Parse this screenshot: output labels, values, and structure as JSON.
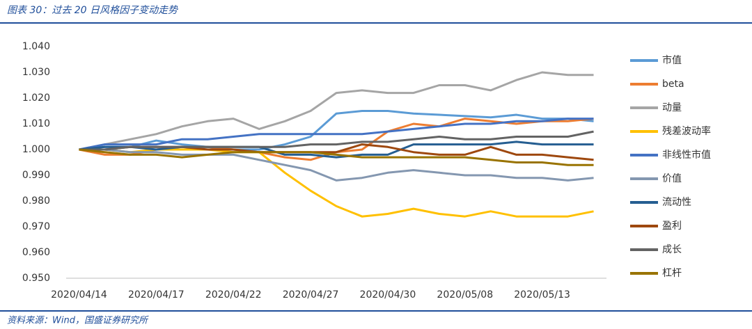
{
  "chart_data": {
    "type": "line",
    "title": "图表 30：过去 20 日风格因子变动走势",
    "source": "资料来源：Wind，国盛证券研究所",
    "categories": [
      "2020/04/14",
      null,
      null,
      "2020/04/17",
      null,
      null,
      "2020/04/22",
      null,
      null,
      "2020/04/27",
      null,
      null,
      "2020/04/30",
      null,
      null,
      "2020/05/08",
      null,
      null,
      "2020/05/13",
      null,
      null
    ],
    "ylim": [
      0.95,
      1.04
    ],
    "yticks": [
      {
        "value": 0.95,
        "label": "0.950"
      },
      {
        "value": 0.96,
        "label": "0.960"
      },
      {
        "value": 0.97,
        "label": "0.970"
      },
      {
        "value": 0.98,
        "label": "0.980"
      },
      {
        "value": 0.99,
        "label": "0.990"
      },
      {
        "value": 1.0,
        "label": "1.000"
      },
      {
        "value": 1.01,
        "label": "1.010"
      },
      {
        "value": 1.02,
        "label": "1.020"
      },
      {
        "value": 1.03,
        "label": "1.030"
      },
      {
        "value": 1.04,
        "label": "1.040"
      }
    ],
    "grid": false,
    "legend": "right",
    "series": [
      {
        "name": "市值",
        "color": "#5b9bd5",
        "values": [
          1.0,
          1.001,
          1.001,
          1.0035,
          1.002,
          1.001,
          1.0,
          1.0,
          1.002,
          1.005,
          1.014,
          1.015,
          1.015,
          1.014,
          1.0135,
          1.013,
          1.0125,
          1.0135,
          1.012,
          1.012,
          1.011
        ]
      },
      {
        "name": "beta",
        "color": "#ed7d31",
        "values": [
          1.0,
          0.998,
          0.998,
          1.0,
          1.001,
          1.001,
          1.0,
          0.999,
          0.997,
          0.996,
          0.999,
          1.0,
          1.007,
          1.01,
          1.009,
          1.012,
          1.011,
          1.01,
          1.011,
          1.011,
          1.012
        ]
      },
      {
        "name": "动量",
        "color": "#a5a5a5",
        "values": [
          1.0,
          1.002,
          1.004,
          1.006,
          1.009,
          1.011,
          1.012,
          1.008,
          1.011,
          1.015,
          1.022,
          1.023,
          1.022,
          1.022,
          1.025,
          1.025,
          1.023,
          1.027,
          1.03,
          1.029,
          1.029
        ]
      },
      {
        "name": "残差波动率",
        "color": "#ffc000",
        "values": [
          1.0,
          1.0,
          0.999,
          1.0,
          1.0,
          1.0,
          0.999,
          0.999,
          0.991,
          0.984,
          0.978,
          0.974,
          0.975,
          0.977,
          0.975,
          0.974,
          0.976,
          0.974,
          0.974,
          0.974,
          0.976
        ]
      },
      {
        "name": "非线性市值",
        "color": "#4472c4",
        "values": [
          1.0,
          1.002,
          1.002,
          1.002,
          1.004,
          1.004,
          1.005,
          1.006,
          1.006,
          1.006,
          1.006,
          1.006,
          1.007,
          1.008,
          1.009,
          1.01,
          1.01,
          1.011,
          1.011,
          1.012,
          1.012
        ]
      },
      {
        "name": "价值",
        "color": "#8497b0",
        "values": [
          1.0,
          1.0,
          0.999,
          0.999,
          0.998,
          0.998,
          0.998,
          0.996,
          0.994,
          0.992,
          0.988,
          0.989,
          0.991,
          0.992,
          0.991,
          0.99,
          0.99,
          0.989,
          0.989,
          0.988,
          0.989
        ]
      },
      {
        "name": "流动性",
        "color": "#255e91",
        "values": [
          1.0,
          1.001,
          1.001,
          1.0,
          1.001,
          1.001,
          1.001,
          1.001,
          0.998,
          0.998,
          0.997,
          0.998,
          0.998,
          1.002,
          1.002,
          1.002,
          1.002,
          1.003,
          1.002,
          1.002,
          1.002
        ]
      },
      {
        "name": "盈利",
        "color": "#9e480e",
        "values": [
          1.0,
          1.0,
          1.001,
          1.001,
          1.001,
          1.0,
          1.0,
          0.999,
          0.999,
          0.999,
          0.999,
          1.002,
          1.001,
          0.999,
          0.998,
          0.998,
          1.001,
          0.998,
          0.998,
          0.997,
          0.996
        ]
      },
      {
        "name": "成长",
        "color": "#636363",
        "values": [
          1.0,
          1.0,
          1.001,
          1.001,
          1.001,
          1.001,
          1.001,
          1.001,
          1.001,
          1.002,
          1.002,
          1.003,
          1.003,
          1.004,
          1.005,
          1.004,
          1.004,
          1.005,
          1.005,
          1.005,
          1.007
        ]
      },
      {
        "name": "杠杆",
        "color": "#997300",
        "values": [
          1.0,
          0.999,
          0.998,
          0.998,
          0.997,
          0.998,
          0.999,
          0.999,
          0.999,
          0.999,
          0.998,
          0.997,
          0.997,
          0.997,
          0.997,
          0.997,
          0.996,
          0.995,
          0.995,
          0.994,
          0.994
        ]
      }
    ]
  }
}
